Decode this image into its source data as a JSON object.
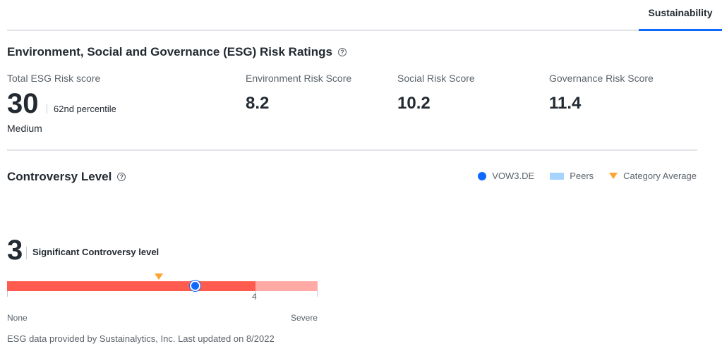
{
  "tab": {
    "label": "Sustainability"
  },
  "esg": {
    "title": "Environment, Social and Governance (ESG) Risk Ratings",
    "total": {
      "label": "Total ESG Risk score",
      "value": "30",
      "percentile": "62nd percentile",
      "level": "Medium"
    },
    "environment": {
      "label": "Environment Risk Score",
      "value": "8.2"
    },
    "social": {
      "label": "Social Risk Score",
      "value": "10.2"
    },
    "governance": {
      "label": "Governance Risk Score",
      "value": "11.4"
    }
  },
  "controversy": {
    "title": "Controversy Level",
    "value": "3",
    "description": "Significant Controversy level",
    "peer_marker_label": "4",
    "scale_min": "None",
    "scale_max": "Severe",
    "scale_fraction_filled": 0.8
  },
  "legend": {
    "company": "VOW3.DE",
    "peers": "Peers",
    "category_average": "Category Average"
  },
  "footer": "ESG data provided by Sustainalytics, Inc.  Last updated on 8/2022",
  "colors": {
    "accent": "#0f69ff",
    "bar_fill": "#ff5b4f",
    "bar_rest": "#ffaaa4",
    "peers": "#a7d4ff",
    "category_average": "#ffa432"
  },
  "icons": {
    "help": "help-circle-icon"
  }
}
